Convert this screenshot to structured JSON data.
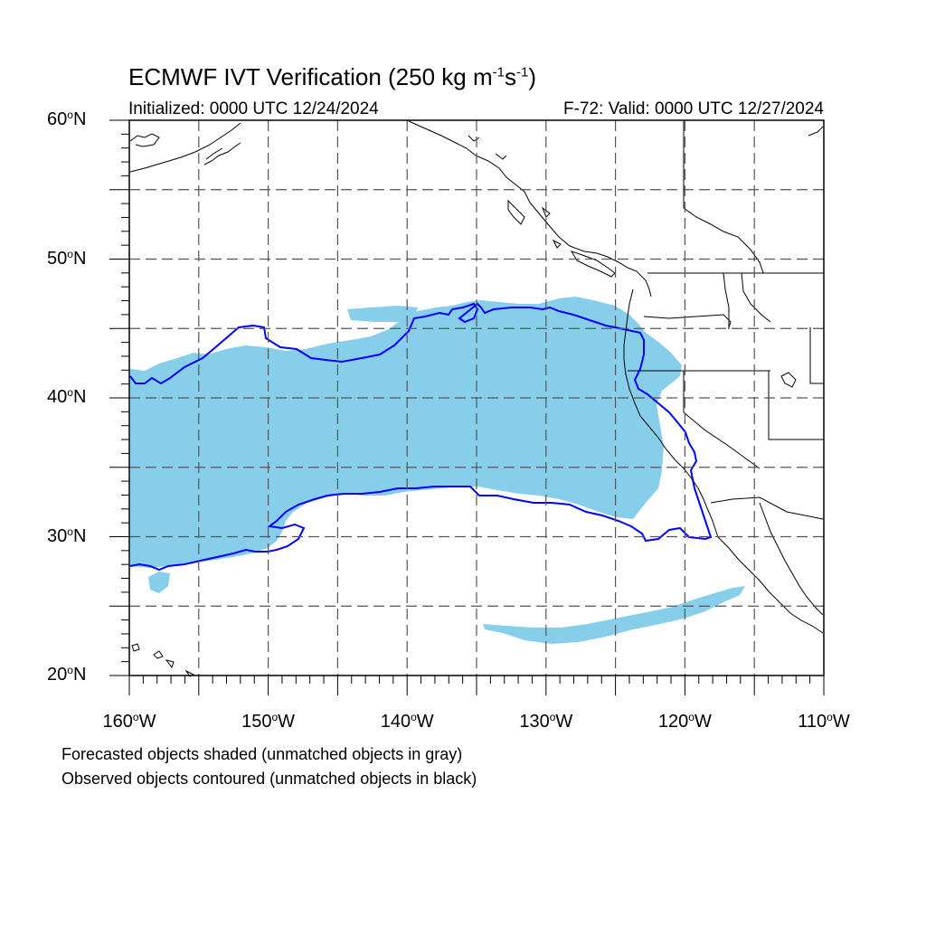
{
  "title": {
    "main": "ECMWF IVT Verification (250 kg m",
    "exp1": "-1",
    "mid": "s",
    "exp2": "-1",
    "end": ")"
  },
  "subtitle": {
    "initialized": "Initialized: 0000 UTC 12/24/2024",
    "valid": "F-72: Valid: 0000 UTC 12/27/2024"
  },
  "map": {
    "lat_range": [
      20,
      60
    ],
    "lon_range": [
      -160,
      -110
    ],
    "grid_step_deg": 5,
    "gridlines": "dashed",
    "forecast_fill_color": "#87ceeb",
    "observed_contour_color": "#0000ff",
    "coastline_color": "#000000"
  },
  "lat_labels": [
    {
      "value": 60,
      "text": "60",
      "hemi": "N"
    },
    {
      "value": 50,
      "text": "50",
      "hemi": "N"
    },
    {
      "value": 40,
      "text": "40",
      "hemi": "N"
    },
    {
      "value": 30,
      "text": "30",
      "hemi": "N"
    },
    {
      "value": 20,
      "text": "20",
      "hemi": "N"
    }
  ],
  "lon_labels": [
    {
      "value": -160,
      "text": "160",
      "hemi": "W"
    },
    {
      "value": -150,
      "text": "150",
      "hemi": "W"
    },
    {
      "value": -140,
      "text": "140",
      "hemi": "W"
    },
    {
      "value": -130,
      "text": "130",
      "hemi": "W"
    },
    {
      "value": -120,
      "text": "120",
      "hemi": "W"
    },
    {
      "value": -110,
      "text": "110",
      "hemi": "W"
    }
  ],
  "legend": {
    "line1": "Forecasted objects shaded (unmatched objects in gray)",
    "line2": "Observed objects contoured (unmatched objects in black)"
  }
}
